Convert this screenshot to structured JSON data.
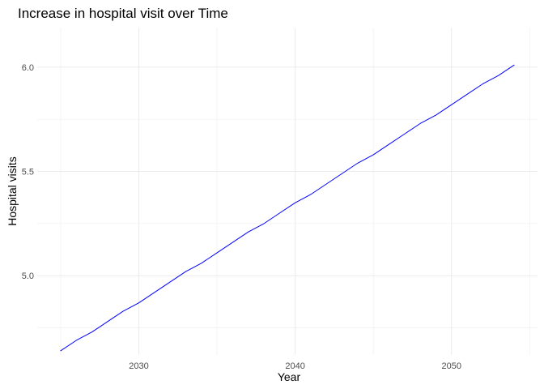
{
  "chart_data": {
    "type": "line",
    "title": "Increase in hospital visit over Time",
    "xlabel": "Year",
    "ylabel": "Hospital visits",
    "xlim": [
      2023.5,
      2055.5
    ],
    "ylim": [
      4.62,
      6.19
    ],
    "x_major_ticks": [
      2030,
      2040,
      2050
    ],
    "x_minor_ticks": [
      2025,
      2035,
      2045,
      2055
    ],
    "y_major_ticks": [
      5.0,
      5.5,
      6.0
    ],
    "y_minor_ticks": [
      4.75,
      5.25,
      5.75
    ],
    "x_tick_labels": [
      "2030",
      "2040",
      "2050"
    ],
    "y_tick_labels": [
      "5.0",
      "5.5",
      "6.0"
    ],
    "grid": true,
    "line_color": "#0000ff",
    "series": [
      {
        "x": [
          2025,
          2026,
          2027,
          2028,
          2029,
          2030,
          2031,
          2032,
          2033,
          2034,
          2035,
          2036,
          2037,
          2038,
          2039,
          2040,
          2041,
          2042,
          2043,
          2044,
          2045,
          2046,
          2047,
          2048,
          2049,
          2050,
          2051,
          2052,
          2053,
          2054
        ],
        "values": [
          4.64,
          4.69,
          4.73,
          4.78,
          4.83,
          4.87,
          4.92,
          4.97,
          5.02,
          5.06,
          5.11,
          5.16,
          5.21,
          5.25,
          5.3,
          5.35,
          5.39,
          5.44,
          5.49,
          5.54,
          5.58,
          5.63,
          5.68,
          5.73,
          5.77,
          5.82,
          5.87,
          5.92,
          5.96,
          6.01
        ]
      }
    ]
  }
}
